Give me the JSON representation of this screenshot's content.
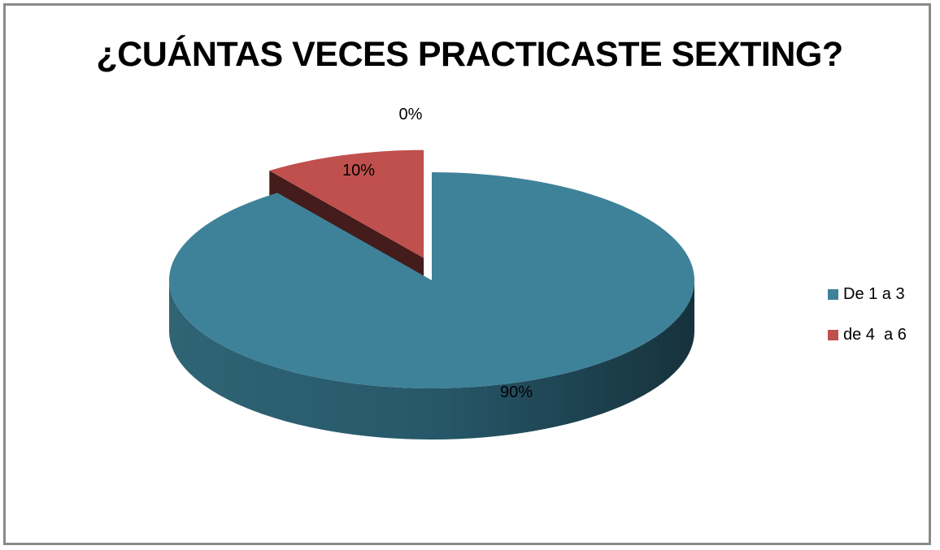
{
  "chart_data": {
    "type": "pie",
    "title": "¿CUÁNTAS VECES PRACTICASTE SEXTING?",
    "slices": [
      {
        "label": "De 1 a 3",
        "value": 90,
        "data_label": "90%",
        "color": "#3e8299"
      },
      {
        "label": "de 4  a 6",
        "value": 10,
        "data_label": "10%",
        "color": "#c0504d"
      },
      {
        "label": "",
        "value": 0,
        "data_label": "0%",
        "color": "#9bbb59"
      }
    ],
    "legend_placement": "right",
    "style": "3d-exploded"
  }
}
